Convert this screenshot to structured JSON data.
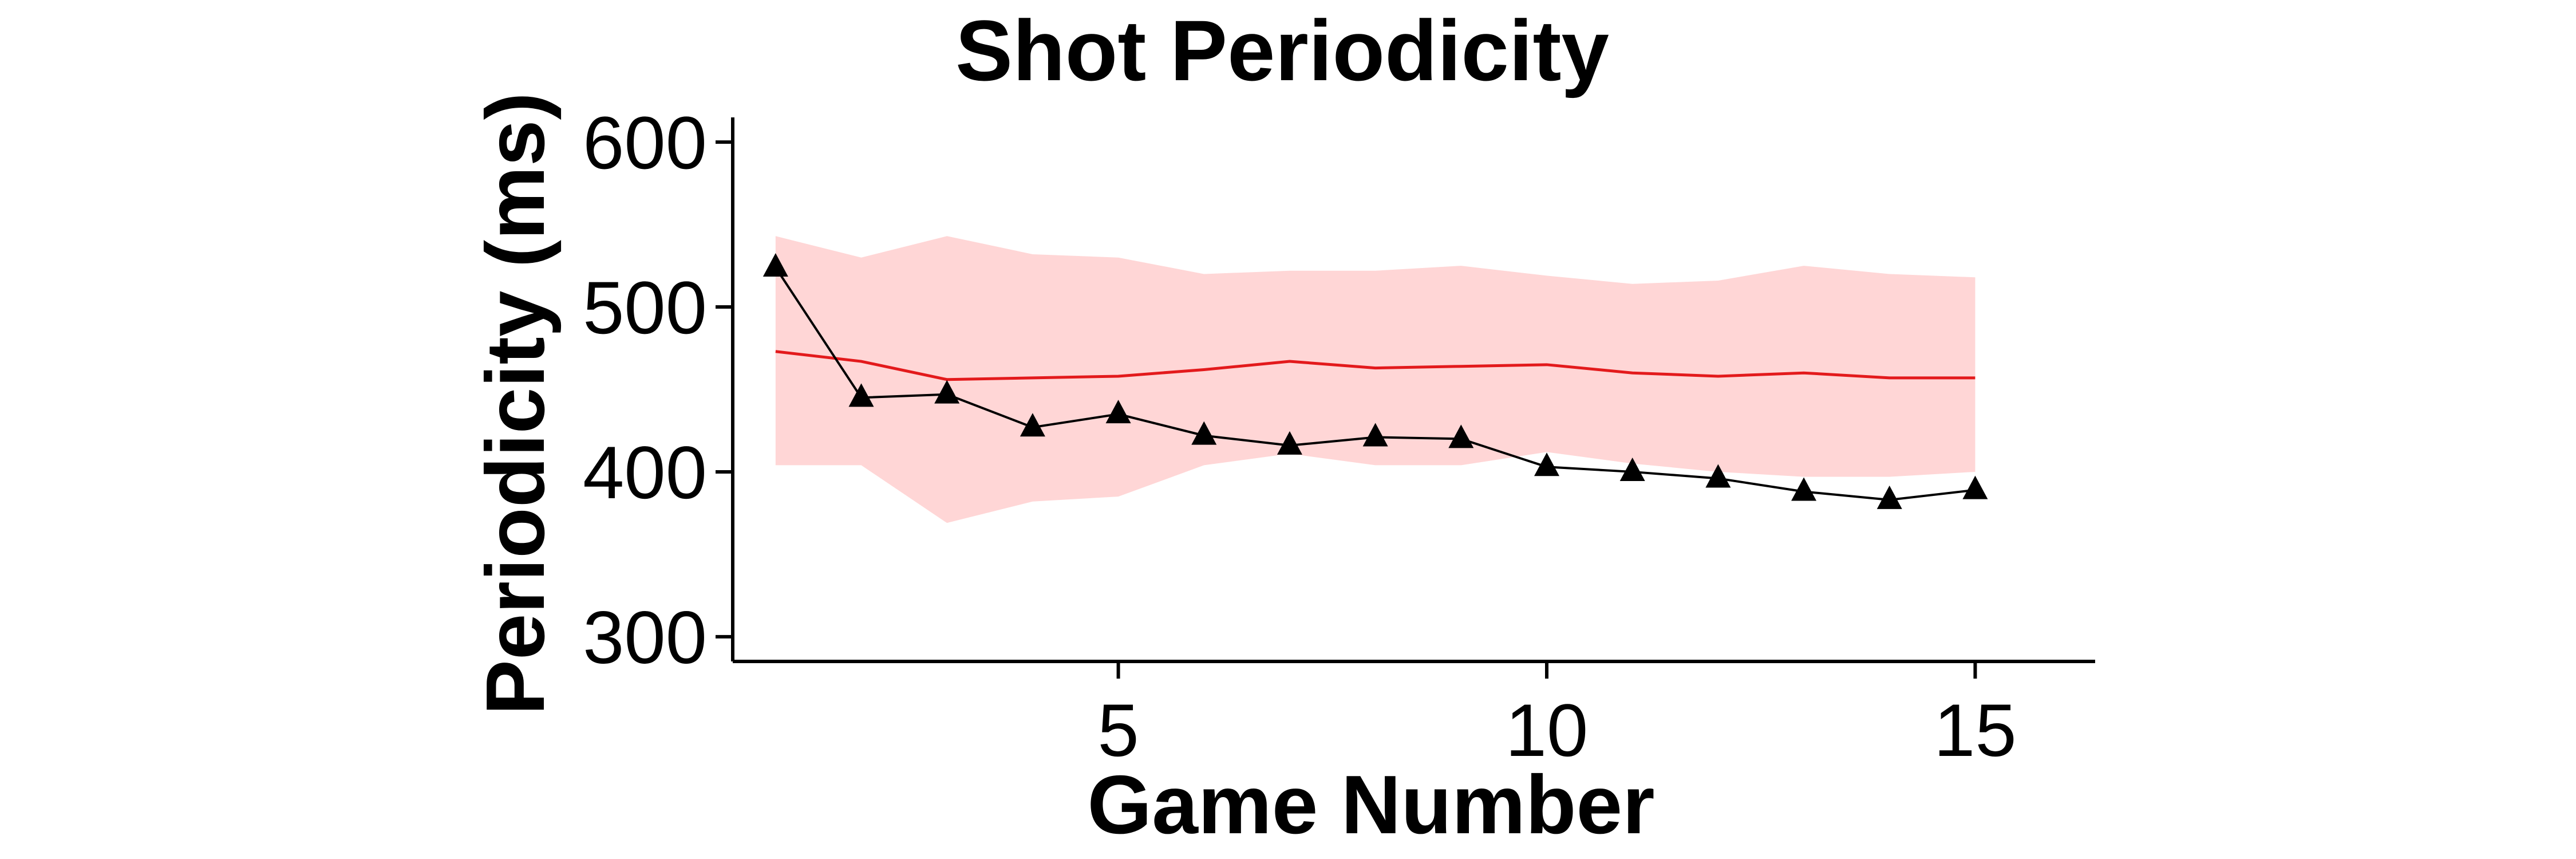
{
  "chart_data": {
    "type": "line",
    "title": "Shot Periodicity",
    "xlabel": "Game Number",
    "ylabel": "Periodicity (ms)",
    "xlim": [
      0.5,
      16.4
    ],
    "ylim": [
      285,
      615
    ],
    "xticks": [
      5,
      10,
      15
    ],
    "yticks": [
      300,
      400,
      500,
      600
    ],
    "grid": false,
    "legend": "none",
    "x": [
      1,
      2,
      3,
      4,
      5,
      6,
      7,
      8,
      9,
      10,
      11,
      12,
      13,
      14,
      15
    ],
    "series": [
      {
        "role": "reference-mean",
        "color": "#e31a1c",
        "marker": "none",
        "values": [
          473,
          467,
          456,
          457,
          458,
          462,
          467,
          463,
          464,
          465,
          460,
          458,
          460,
          457,
          457
        ]
      },
      {
        "role": "reference-band",
        "color": "#ffd6d6",
        "upper": [
          543,
          530,
          543,
          532,
          530,
          520,
          522,
          522,
          525,
          519,
          514,
          516,
          525,
          520,
          518
        ],
        "lower": [
          404,
          404,
          369,
          382,
          385,
          404,
          411,
          404,
          404,
          412,
          405,
          400,
          397,
          397,
          400
        ]
      },
      {
        "role": "observed",
        "color": "#000000",
        "marker": "triangle",
        "values": [
          524,
          445,
          447,
          427,
          435,
          422,
          416,
          421,
          420,
          403,
          400,
          396,
          388,
          383,
          389
        ]
      }
    ]
  }
}
